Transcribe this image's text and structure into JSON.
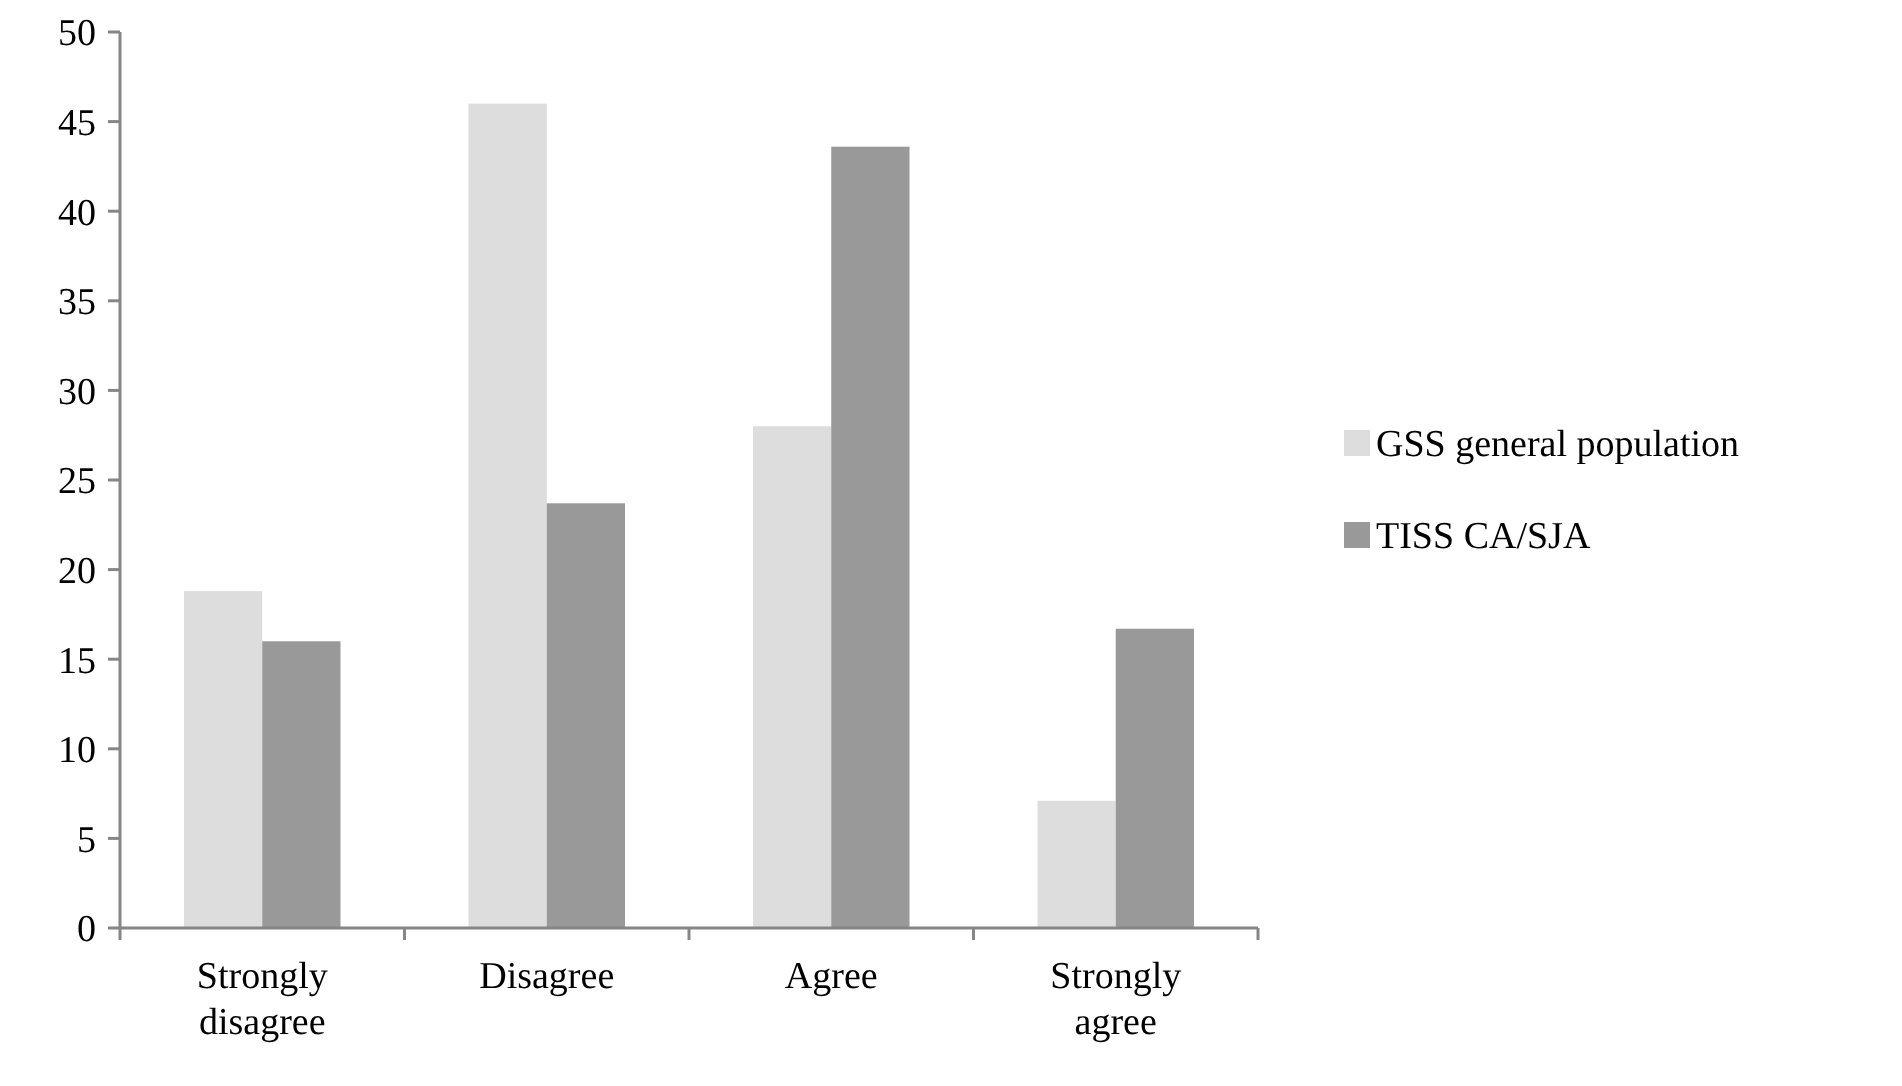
{
  "chart_data": {
    "type": "bar",
    "categories": [
      "Strongly disagree",
      "Disagree",
      "Agree",
      "Strongly agree"
    ],
    "series": [
      {
        "name": "GSS general population",
        "color": "#dddddd",
        "values": [
          18.8,
          46.0,
          28.0,
          7.1
        ]
      },
      {
        "name": "TISS CA/SJA",
        "color": "#999999",
        "values": [
          16.0,
          23.7,
          43.6,
          16.7
        ]
      }
    ],
    "ylim": [
      0,
      50
    ],
    "yticks": [
      0,
      5,
      10,
      15,
      20,
      25,
      30,
      35,
      40,
      45,
      50
    ],
    "grid": false,
    "legend": "right"
  }
}
